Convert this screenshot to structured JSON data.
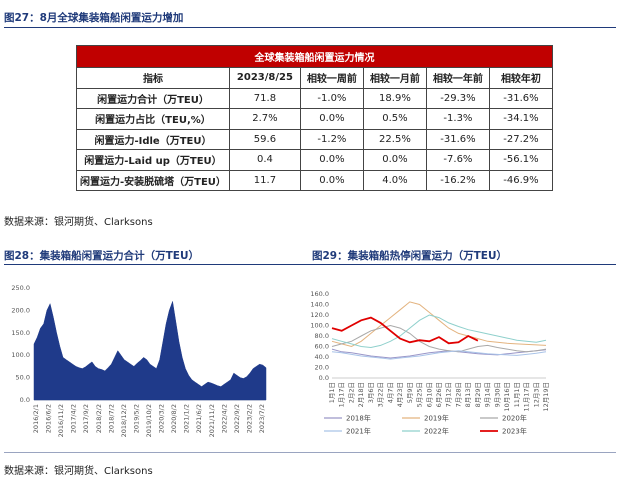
{
  "fig27": {
    "title": "图27：8月全球集装箱船闲置运力增加",
    "table_title": "全球集装箱船闲置运力情况",
    "headers": [
      "指标",
      "2023/8/25",
      "相较一周前",
      "相较一月前",
      "相较一年前",
      "相较年初"
    ],
    "rows": [
      [
        "闲置运力合计（万TEU）",
        "71.8",
        "-1.0%",
        "18.9%",
        "-29.3%",
        "-31.6%"
      ],
      [
        "闲置运力占比（TEU,%）",
        "2.7%",
        "0.0%",
        "0.5%",
        "-1.3%",
        "-34.1%"
      ],
      [
        "闲置运力-Idle（万TEU）",
        "59.6",
        "-1.2%",
        "22.5%",
        "-31.6%",
        "-27.2%"
      ],
      [
        "闲置运力-Laid up（万TEU）",
        "0.4",
        "0.0%",
        "0.0%",
        "-7.6%",
        "-56.1%"
      ],
      [
        "闲置运力-安装脱硫塔（万TEU）",
        "11.7",
        "0.0%",
        "4.0%",
        "-16.2%",
        "-46.9%"
      ]
    ]
  },
  "source1": "数据来源：银河期货、Clarksons",
  "fig28": {
    "title": "图28：集装箱船闲置运力合计（万TEU）"
  },
  "fig29": {
    "title": "图29：集装箱船热停闲置运力（万TEU）"
  },
  "source2": "数据来源：银河期货、Clarksons",
  "colors": {
    "title_blue": "#1f3a7a",
    "header_red": "#c00000",
    "area_blue": "#1f3a8a",
    "y2018": "#9a96c8",
    "y2019": "#e3b37f",
    "y2020": "#a9a9a9",
    "y2021": "#a9c3e8",
    "y2022": "#8fd0cc",
    "y2023": "#e00000"
  },
  "chart_data": [
    {
      "type": "area",
      "title": "",
      "ylim": [
        0,
        250
      ],
      "yticks": [
        "0.0",
        "50.0",
        "100.0",
        "150.0",
        "200.0",
        "250.0"
      ],
      "xticks": [
        "2016/2/1",
        "2016/6/2",
        "2016/11/2",
        "2017/4/2",
        "2017/9/2",
        "2018/2/2",
        "2018/7/2",
        "2018/12/2",
        "2019/5/2",
        "2019/10/2",
        "2020/3/2",
        "2020/8/2",
        "2021/1/2",
        "2021/6/2",
        "2021/11/2",
        "2022/4/2",
        "2022/9/2",
        "2023/2/2",
        "2023/7/2"
      ],
      "series": [
        {
          "values": [
            125,
            140,
            160,
            170,
            200,
            215,
            185,
            150,
            120,
            95,
            90,
            85,
            80,
            75,
            72,
            70,
            74,
            80,
            85,
            75,
            70,
            68,
            65,
            72,
            80,
            95,
            110,
            100,
            90,
            85,
            80,
            75,
            82,
            88,
            95,
            90,
            80,
            75,
            70,
            90,
            130,
            170,
            200,
            220,
            175,
            130,
            95,
            70,
            55,
            45,
            40,
            35,
            30,
            35,
            40,
            38,
            35,
            32,
            30,
            35,
            40,
            45,
            60,
            55,
            50,
            48,
            52,
            60,
            70,
            75,
            80,
            78,
            72
          ]
        }
      ]
    },
    {
      "type": "line",
      "title": "",
      "ylim": [
        0,
        160
      ],
      "yticks": [
        "0.0",
        "20.0",
        "40.0",
        "60.0",
        "80.0",
        "100.0",
        "120.0",
        "140.0",
        "160.0"
      ],
      "xticks": [
        "1月1日",
        "1月17日",
        "2月2日",
        "2月18日",
        "3月6日",
        "3月22日",
        "4月7日",
        "4月23日",
        "5月9日",
        "5月25日",
        "6月10日",
        "6月26日",
        "7月12日",
        "7月28日",
        "8月13日",
        "8月29日",
        "9月14日",
        "9月30日",
        "10月16日",
        "11月1日",
        "11月17日",
        "12月3日",
        "12月19日"
      ],
      "series": [
        {
          "name": "2018年",
          "values": [
            55,
            50,
            48,
            45,
            42,
            40,
            38,
            40,
            42,
            45,
            48,
            50,
            52,
            50,
            48,
            46,
            45,
            44,
            46,
            48,
            50,
            52,
            54
          ]
        },
        {
          "name": "2019年",
          "values": [
            70,
            65,
            60,
            70,
            85,
            100,
            115,
            130,
            145,
            140,
            125,
            110,
            95,
            85,
            80,
            75,
            70,
            68,
            66,
            65,
            64,
            63,
            62
          ]
        },
        {
          "name": "2020年",
          "values": [
            60,
            65,
            70,
            80,
            90,
            95,
            100,
            95,
            85,
            70,
            60,
            55,
            52,
            50,
            55,
            60,
            62,
            58,
            55,
            52,
            50,
            52,
            55
          ]
        },
        {
          "name": "2021年",
          "values": [
            50,
            48,
            45,
            42,
            40,
            38,
            36,
            38,
            40,
            42,
            45,
            48,
            50,
            52,
            50,
            48,
            46,
            45,
            44,
            43,
            45,
            47,
            50
          ]
        },
        {
          "name": "2022年",
          "values": [
            75,
            70,
            65,
            60,
            58,
            62,
            70,
            80,
            95,
            110,
            120,
            115,
            105,
            98,
            92,
            88,
            84,
            80,
            76,
            72,
            70,
            68,
            72
          ]
        },
        {
          "name": "2023年",
          "values": [
            95,
            90,
            100,
            110,
            115,
            105,
            90,
            75,
            68,
            72,
            70,
            78,
            66,
            68,
            80,
            71
          ]
        }
      ]
    }
  ]
}
